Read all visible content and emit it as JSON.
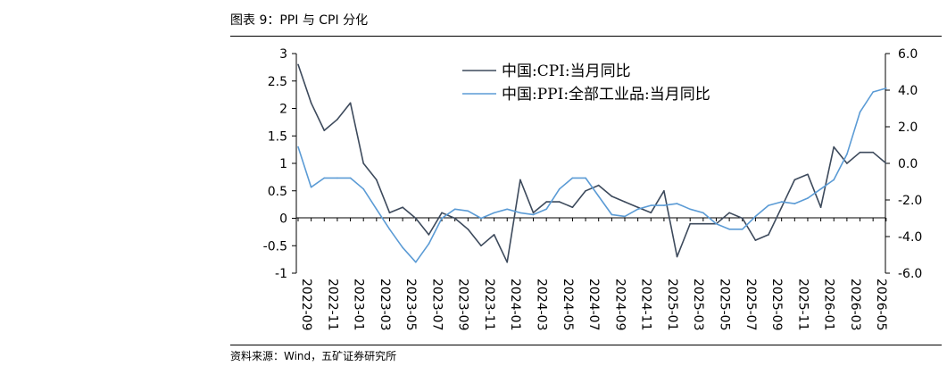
{
  "header": {
    "title": "图表 9：PPI 与 CPI 分化",
    "source": "资料来源：Wind，五矿证券研究所"
  },
  "colors": {
    "cpi": "#3d4a5c",
    "ppi": "#5b9bd5",
    "axis": "#000000"
  },
  "chart_data": {
    "type": "line",
    "title": "",
    "xlabel": "",
    "ylabel": "",
    "x": [
      "2022-09",
      "2022-10",
      "2022-11",
      "2022-12",
      "2023-01",
      "2023-02",
      "2023-03",
      "2023-04",
      "2023-05",
      "2023-06",
      "2023-07",
      "2023-08",
      "2023-09",
      "2023-10",
      "2023-11",
      "2023-12",
      "2024-01",
      "2024-02",
      "2024-03",
      "2024-04",
      "2024-05",
      "2024-06",
      "2024-07",
      "2024-08",
      "2024-09",
      "2024-10",
      "2024-11",
      "2024-12",
      "2025-01",
      "2025-02",
      "2025-03",
      "2025-04",
      "2025-05",
      "2025-06",
      "2025-07",
      "2025-08",
      "2025-09",
      "2025-10",
      "2025-11",
      "2025-12",
      "2026-01",
      "2026-02",
      "2026-03",
      "2026-04",
      "2026-05",
      "2026-06"
    ],
    "x_tick_labels": [
      "2022-09",
      "2022-11",
      "2023-01",
      "2023-03",
      "2023-05",
      "2023-07",
      "2023-09",
      "2023-11",
      "2024-01",
      "2024-03",
      "2024-05",
      "2024-07",
      "2024-09",
      "2024-11",
      "2025-01",
      "2025-03",
      "2025-05",
      "2025-07",
      "2025-09",
      "2025-11",
      "2026-01",
      "2026-03",
      "2026-05"
    ],
    "y_left": {
      "range": [
        -1,
        3
      ],
      "ticks": [
        "-1",
        "-0.5",
        "0",
        "0.5",
        "1",
        "1.5",
        "2",
        "2.5",
        "3"
      ]
    },
    "y_right": {
      "range": [
        -6,
        6
      ],
      "ticks": [
        "-6.0",
        "-4.0",
        "-2.0",
        "0.0",
        "2.0",
        "4.0",
        "6.0"
      ]
    },
    "legend_position": "top-center",
    "grid": false,
    "series": [
      {
        "name": "中国:CPI:当月同比",
        "axis": "left",
        "color": "#3d4a5c",
        "values": [
          2.8,
          2.1,
          1.6,
          1.8,
          2.1,
          1.0,
          0.7,
          0.1,
          0.2,
          0.0,
          -0.3,
          0.1,
          0.0,
          -0.2,
          -0.5,
          -0.3,
          -0.8,
          0.7,
          0.1,
          0.3,
          0.3,
          0.2,
          0.5,
          0.6,
          0.4,
          0.3,
          0.2,
          0.1,
          0.5,
          -0.7,
          -0.1,
          -0.1,
          -0.1,
          0.1,
          0.0,
          -0.4,
          -0.3,
          0.2,
          0.7,
          0.8,
          0.2,
          1.3,
          1.0,
          1.2,
          1.2,
          1.0
        ]
      },
      {
        "name": "中国:PPI:全部工业品:当月同比",
        "axis": "right",
        "color": "#5b9bd5",
        "values": [
          0.9,
          -1.3,
          -0.8,
          -0.8,
          -0.8,
          -1.4,
          -2.5,
          -3.6,
          -4.6,
          -5.4,
          -4.4,
          -3.0,
          -2.5,
          -2.6,
          -3.0,
          -2.7,
          -2.5,
          -2.7,
          -2.8,
          -2.5,
          -1.4,
          -0.8,
          -0.8,
          -1.8,
          -2.8,
          -2.9,
          -2.5,
          -2.3,
          -2.3,
          -2.2,
          -2.5,
          -2.7,
          -3.3,
          -3.6,
          -3.6,
          -2.9,
          -2.3,
          -2.1,
          -2.2,
          -1.9,
          -1.4,
          -0.9,
          0.5,
          2.8,
          3.9,
          4.1
        ]
      }
    ]
  }
}
